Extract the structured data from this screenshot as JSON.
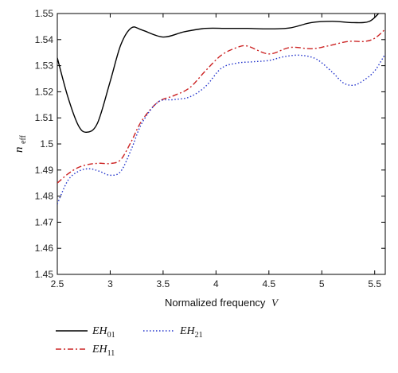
{
  "chart_data": {
    "type": "line",
    "xlabel": "Normalized frequency",
    "xlabel_var": "V",
    "ylabel": "n",
    "ylabel_sub": "eff",
    "xlim": [
      2.5,
      5.6
    ],
    "ylim": [
      1.45,
      1.55
    ],
    "x_ticks": [
      "2.5",
      "3",
      "3.5",
      "4",
      "4.5",
      "5",
      "5.5"
    ],
    "y_ticks": [
      "1.45",
      "1.46",
      "1.47",
      "1.48",
      "1.49",
      "1.5",
      "1.51",
      "1.52",
      "1.53",
      "1.54",
      "1.55"
    ],
    "grid": false,
    "legend_position": "bottom",
    "series": [
      {
        "name": "EH",
        "sub": "01",
        "color": "#000000",
        "dash": "solid",
        "x": [
          2.5,
          2.6,
          2.7,
          2.78,
          2.88,
          3.0,
          3.1,
          3.2,
          3.3,
          3.5,
          3.7,
          3.9,
          4.1,
          4.3,
          4.5,
          4.7,
          4.9,
          5.1,
          5.3,
          5.45,
          5.55,
          5.6
        ],
        "y": [
          1.533,
          1.518,
          1.507,
          1.5045,
          1.508,
          1.524,
          1.538,
          1.5445,
          1.5437,
          1.541,
          1.543,
          1.5443,
          1.5443,
          1.5443,
          1.5441,
          1.5445,
          1.5465,
          1.547,
          1.5465,
          1.547,
          1.5505,
          1.552
        ]
      },
      {
        "name": "EH",
        "sub": "11",
        "color": "#cc2222",
        "dash": "dashdot",
        "x": [
          2.5,
          2.6,
          2.7,
          2.8,
          2.9,
          3.0,
          3.1,
          3.2,
          3.3,
          3.45,
          3.6,
          3.75,
          3.9,
          4.05,
          4.2,
          4.3,
          4.5,
          4.7,
          4.9,
          5.05,
          5.25,
          5.4,
          5.5,
          5.6
        ],
        "y": [
          1.485,
          1.4885,
          1.491,
          1.4922,
          1.4926,
          1.4925,
          1.494,
          1.501,
          1.509,
          1.516,
          1.5185,
          1.5215,
          1.528,
          1.534,
          1.537,
          1.5375,
          1.5345,
          1.537,
          1.5365,
          1.5375,
          1.5393,
          1.5393,
          1.5405,
          1.544
        ]
      },
      {
        "name": "EH",
        "sub": "21",
        "color": "#2233cc",
        "dash": "dotted",
        "x": [
          2.5,
          2.6,
          2.7,
          2.8,
          2.9,
          3.0,
          3.1,
          3.2,
          3.3,
          3.45,
          3.6,
          3.75,
          3.9,
          4.05,
          4.2,
          4.35,
          4.5,
          4.65,
          4.8,
          4.95,
          5.1,
          5.2,
          5.3,
          5.4,
          5.5,
          5.6
        ],
        "y": [
          1.477,
          1.486,
          1.4895,
          1.4905,
          1.4895,
          1.488,
          1.4895,
          1.498,
          1.508,
          1.516,
          1.517,
          1.518,
          1.522,
          1.529,
          1.531,
          1.5315,
          1.532,
          1.5335,
          1.534,
          1.5325,
          1.5275,
          1.5235,
          1.5225,
          1.5245,
          1.528,
          1.5345
        ]
      }
    ]
  }
}
